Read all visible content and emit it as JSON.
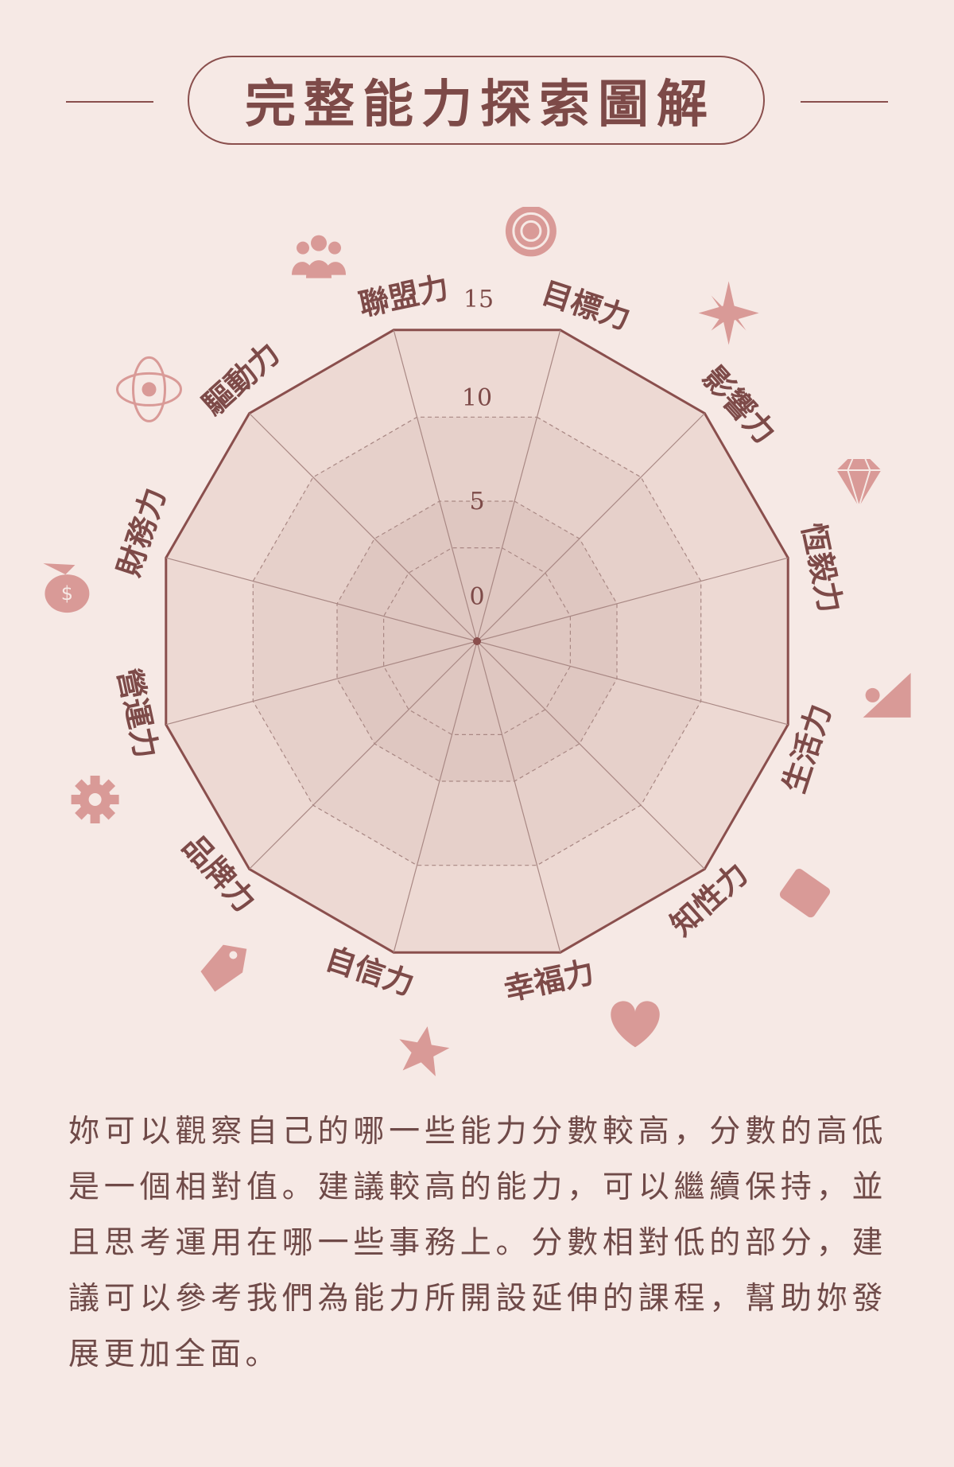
{
  "title": "完整能力探索圖解",
  "chart_data": {
    "type": "radar",
    "ticks": [
      "0",
      "5",
      "10",
      "15"
    ],
    "axes": [
      {
        "label": "目標力",
        "icon": "target-icon"
      },
      {
        "label": "影響力",
        "icon": "sparkle-icon"
      },
      {
        "label": "恆毅力",
        "icon": "diamond-icon"
      },
      {
        "label": "生活力",
        "icon": "picture-icon"
      },
      {
        "label": "知性力",
        "icon": "book-icon"
      },
      {
        "label": "幸福力",
        "icon": "heart-icon"
      },
      {
        "label": "自信力",
        "icon": "star-icon"
      },
      {
        "label": "品牌力",
        "icon": "tag-icon"
      },
      {
        "label": "營運力",
        "icon": "gear-icon"
      },
      {
        "label": "財務力",
        "icon": "money-bag-icon"
      },
      {
        "label": "驅動力",
        "icon": "atom-icon"
      },
      {
        "label": "聯盟力",
        "icon": "group-icon"
      }
    ],
    "colors": {
      "outline": "#8a4f4d",
      "ring_outer": "#edd9d3",
      "ring_mid": "#e6d0ca",
      "ring_inner": "#dfc7c1",
      "icon": "#d99a97"
    }
  },
  "description": "妳可以觀察自己的哪一些能力分數較高，分數的高低是一個相對值。建議較高的能力，可以繼續保持，並且思考運用在哪一些事務上。分數相對低的部分，建議可以參考我們為能力所開設延伸的課程，幫助妳發展更加全面。"
}
